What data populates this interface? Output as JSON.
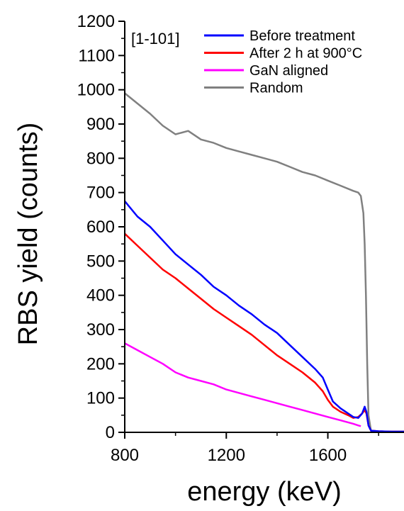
{
  "chart_data": {
    "type": "line",
    "title": "",
    "xlabel": "energy (keV)",
    "ylabel": "RBS yield (counts)",
    "xlim": [
      800,
      1900
    ],
    "ylim": [
      0,
      1200
    ],
    "x_ticks": [
      800,
      1200,
      1600
    ],
    "x_tick_labels": [
      "800",
      "1200",
      "1600"
    ],
    "y_ticks": [
      0,
      100,
      200,
      300,
      400,
      500,
      600,
      700,
      800,
      900,
      1000,
      1100,
      1200
    ],
    "y_tick_labels": [
      "0",
      "100",
      "200",
      "300",
      "400",
      "500",
      "600",
      "700",
      "800",
      "900",
      "1000",
      "1100",
      "1200"
    ],
    "annotation": "[1-101]",
    "legend_position": "top-right",
    "series": [
      {
        "name": "Before treatment",
        "color": "#0000ff",
        "x": [
          800,
          850,
          900,
          950,
          1000,
          1050,
          1100,
          1150,
          1200,
          1250,
          1300,
          1350,
          1400,
          1450,
          1500,
          1550,
          1580,
          1600,
          1620,
          1650,
          1680,
          1700,
          1720,
          1735,
          1745,
          1752,
          1760,
          1770,
          1800,
          1850,
          1900
        ],
        "y": [
          675,
          630,
          600,
          560,
          520,
          490,
          460,
          425,
          400,
          370,
          345,
          315,
          290,
          255,
          220,
          185,
          160,
          125,
          90,
          70,
          55,
          45,
          42,
          55,
          75,
          60,
          20,
          5,
          3,
          2,
          2
        ]
      },
      {
        "name": "After 2 h at 900°C",
        "color": "#ff0000",
        "x": [
          800,
          850,
          900,
          950,
          1000,
          1050,
          1100,
          1150,
          1200,
          1250,
          1300,
          1350,
          1400,
          1450,
          1500,
          1550,
          1580,
          1600,
          1620,
          1650,
          1680,
          1700,
          1720,
          1735,
          1745,
          1752,
          1760,
          1770,
          1800,
          1850,
          1900
        ],
        "y": [
          580,
          545,
          510,
          475,
          450,
          420,
          390,
          360,
          335,
          310,
          285,
          255,
          225,
          200,
          175,
          145,
          120,
          95,
          75,
          60,
          50,
          42,
          45,
          55,
          65,
          55,
          20,
          5,
          3,
          2,
          2
        ]
      },
      {
        "name": "GaN aligned",
        "color": "#ff00ff",
        "x": [
          800,
          850,
          900,
          950,
          1000,
          1050,
          1100,
          1150,
          1200,
          1250,
          1300,
          1350,
          1400,
          1450,
          1500,
          1550,
          1600,
          1650,
          1700,
          1720,
          1730
        ],
        "y": [
          260,
          240,
          220,
          200,
          175,
          160,
          150,
          140,
          125,
          115,
          105,
          95,
          85,
          75,
          65,
          55,
          45,
          35,
          25,
          20,
          18
        ]
      },
      {
        "name": "Random",
        "color": "#808080",
        "x": [
          800,
          850,
          900,
          950,
          1000,
          1050,
          1100,
          1150,
          1200,
          1250,
          1300,
          1350,
          1400,
          1450,
          1500,
          1550,
          1600,
          1650,
          1700,
          1720,
          1730,
          1740,
          1745,
          1750,
          1755,
          1760,
          1770,
          1800,
          1850,
          1900
        ],
        "y": [
          990,
          960,
          930,
          895,
          870,
          880,
          855,
          845,
          830,
          820,
          810,
          800,
          790,
          775,
          760,
          750,
          735,
          720,
          705,
          700,
          690,
          640,
          550,
          400,
          200,
          50,
          5,
          3,
          2,
          2
        ]
      }
    ]
  }
}
